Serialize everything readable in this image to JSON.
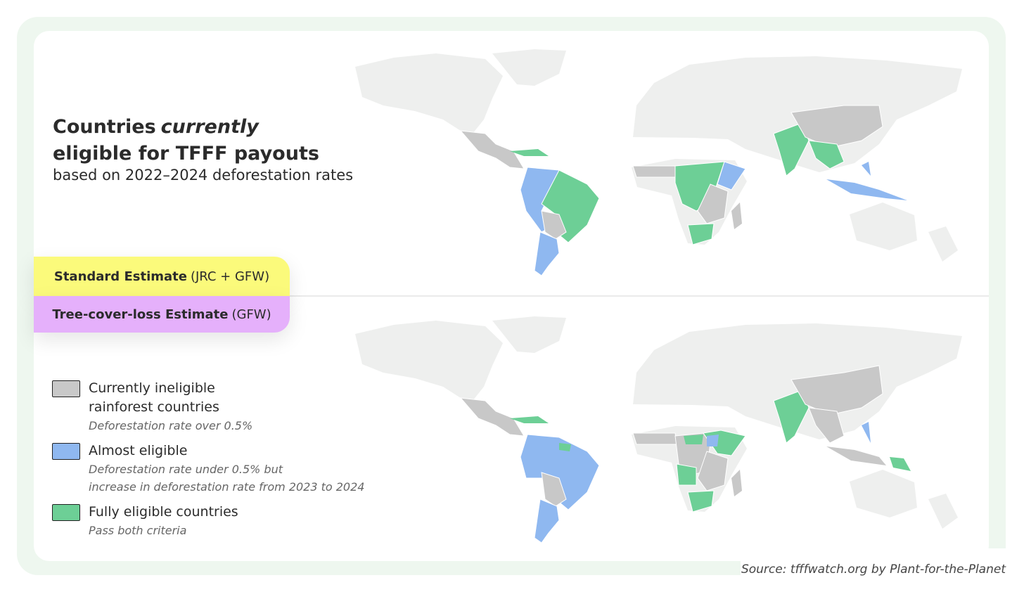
{
  "title": {
    "line1": "Countries",
    "line1_emphasis": "currently",
    "line2": "eligible for TFFF payouts",
    "subtitle": "based on 2022–2024 deforestation rates"
  },
  "tabs": [
    {
      "label_bold": "Standard Estimate",
      "label_rest": "(JRC + GFW)"
    },
    {
      "label_bold": "Tree-cover-loss Estimate",
      "label_rest": "(GFW)"
    }
  ],
  "legend": [
    {
      "label": [
        "Currently ineligible",
        "rainforest countries"
      ],
      "note": [
        "Deforestation rate over 0.5%"
      ]
    },
    {
      "label": [
        "Almost eligible"
      ],
      "note": [
        "Deforestation rate under 0.5% but",
        "increase in deforestation rate from 2023 to 2024"
      ]
    },
    {
      "label": [
        "Fully eligible countries"
      ],
      "note": [
        "Pass both criteria"
      ]
    }
  ],
  "source": "Source: tfffwatch.org by Plant-for-the-Planet"
}
